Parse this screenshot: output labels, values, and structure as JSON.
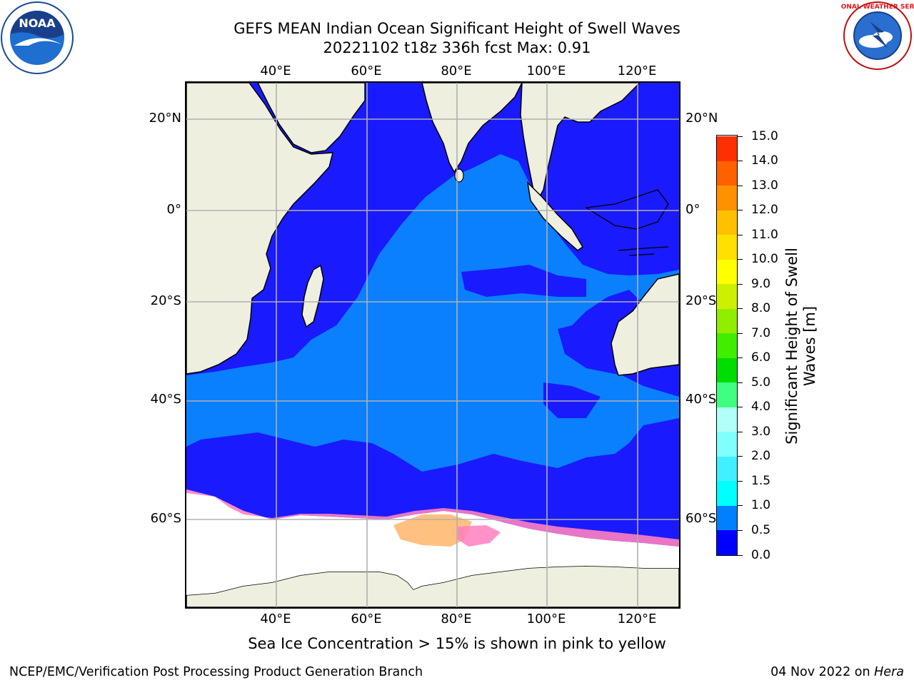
{
  "title": {
    "line1": "GEFS MEAN Indian Ocean Significant Height of Swell Waves",
    "line2": "20221102 t18z 336h fcst   Max: 0.91"
  },
  "logos": {
    "left": "NOAA",
    "right": "NATIONAL WEATHER SERVICE"
  },
  "map": {
    "lon_ticks": [
      "40°E",
      "60°E",
      "80°E",
      "100°E",
      "120°E"
    ],
    "lat_ticks": [
      "20°N",
      "0°",
      "20°S",
      "40°S",
      "60°S"
    ],
    "extent": {
      "lon": [
        20,
        130
      ],
      "lat": [
        -75,
        28
      ]
    },
    "colors": {
      "land": "#efefdf",
      "ice_white": "#ffffff",
      "ice_pink": "#ff80c0",
      "ice_orange": "#ffb060",
      "grid": "#b0b0b0"
    }
  },
  "colorbar": {
    "label": "Significant Height of Swell Waves [m]",
    "labels": [
      "0.0",
      "0.5",
      "1.0",
      "1.5",
      "2.0",
      "3.0",
      "4.0",
      "5.0",
      "6.0",
      "7.0",
      "8.0",
      "9.0",
      "10.0",
      "11.0",
      "12.0",
      "13.0",
      "14.0",
      "15.0"
    ],
    "colors": [
      "#0000ff",
      "#0080ff",
      "#00ffff",
      "#40f0ff",
      "#80ffff",
      "#b0fff8",
      "#40ff80",
      "#00dd00",
      "#40ee00",
      "#90ee00",
      "#ccf000",
      "#ffff00",
      "#ffe000",
      "#ffc000",
      "#ff9000",
      "#ff6000",
      "#ff3000",
      "#ff0000"
    ]
  },
  "footnote": "Sea Ice Concentration > 15% is shown in pink to yellow",
  "credit": "NCEP/EMC/Verification Post Processing Product Generation Branch",
  "date_prefix": "04 Nov 2022 on ",
  "date_host": "Hera"
}
